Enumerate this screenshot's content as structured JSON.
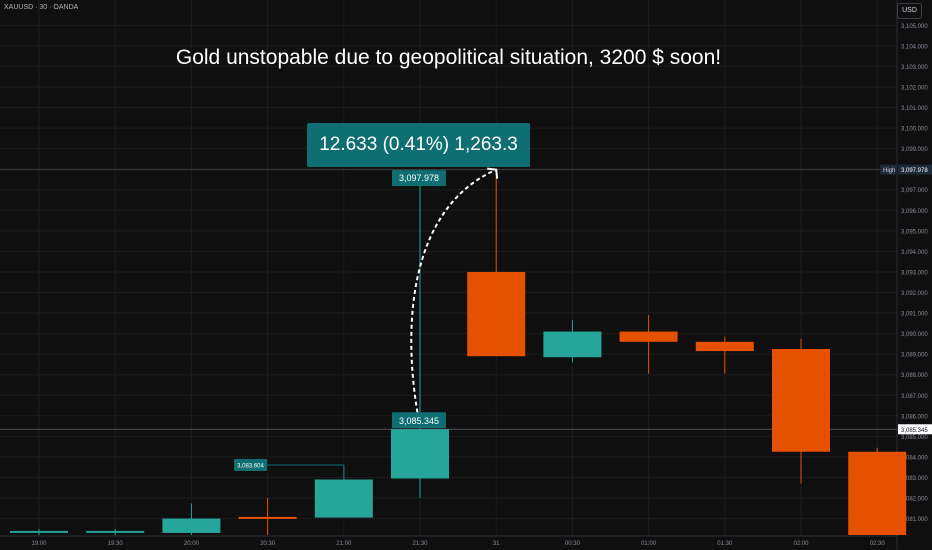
{
  "symbol_info": "XAUUSD · 30 · OANDA",
  "currency_label": "USD",
  "headline": "Gold unstopable due to geopolitical situation, 3200 $ soon!",
  "measure_label": "12.633 (0.41%) 1,263.3",
  "colors": {
    "background": "#0f0f0f",
    "up": "#26a69a",
    "down": "#e65100",
    "label_bg": "#0e6e72",
    "axis_text": "#8a8e99",
    "grid": "#1c1c1c"
  },
  "chart_data": {
    "type": "candlestick",
    "x_ticks": [
      "19:00",
      "19:30",
      "20:00",
      "20:30",
      "21:00",
      "21:30",
      "31",
      "00:30",
      "01:00",
      "01:30",
      "02:00",
      "02:30"
    ],
    "ylim": [
      3080.2,
      3105.6
    ],
    "y_ticks": [
      3081,
      3082,
      3083,
      3084,
      3085,
      3086,
      3087,
      3088,
      3089,
      3090,
      3091,
      3092,
      3093,
      3094,
      3095,
      3096,
      3097,
      3098,
      3099,
      3100,
      3101,
      3102,
      3103,
      3104,
      3105
    ],
    "y_tick_labels": [
      "3,081.000",
      "3,082.000",
      "3,083.000",
      "3,084.000",
      "3,085.000",
      "3,086.000",
      "3,087.000",
      "3,088.000",
      "3,089.000",
      "3,090.000",
      "3,091.000",
      "3,092.000",
      "3,093.000",
      "3,094.000",
      "3,095.000",
      "3,096.000",
      "3,097.000",
      "3,098.000",
      "3,099.000",
      "3,100.000",
      "3,101.000",
      "3,102.000",
      "3,103.000",
      "3,104.000",
      "3,105.000"
    ],
    "candles": [
      {
        "time": "19:00",
        "open": 3080.35,
        "high": 3080.5,
        "low": 3080.2,
        "close": 3080.4
      },
      {
        "time": "19:30",
        "open": 3080.35,
        "high": 3080.5,
        "low": 3080.2,
        "close": 3080.4
      },
      {
        "time": "20:00",
        "open": 3080.3,
        "high": 3081.73,
        "low": 3080.2,
        "close": 3081.0
      },
      {
        "time": "20:30",
        "open": 3081.08,
        "high": 3082.0,
        "low": 3080.2,
        "close": 3081.0
      },
      {
        "time": "21:00",
        "open": 3081.05,
        "high": 3083.6,
        "low": 3081.05,
        "close": 3082.9
      },
      {
        "time": "21:30",
        "open": 3082.95,
        "high": 3097.978,
        "low": 3082.0,
        "close": 3085.345
      },
      {
        "time": "31",
        "open": 3093.0,
        "high": 3097.978,
        "low": 3088.9,
        "close": 3088.9
      },
      {
        "time": "00:30",
        "open": 3088.85,
        "high": 3090.65,
        "low": 3088.6,
        "close": 3090.1
      },
      {
        "time": "01:00",
        "open": 3090.1,
        "high": 3090.9,
        "low": 3088.05,
        "close": 3089.6
      },
      {
        "time": "01:30",
        "open": 3089.6,
        "high": 3089.85,
        "low": 3088.05,
        "close": 3089.15
      },
      {
        "time": "02:00",
        "open": 3089.25,
        "high": 3089.75,
        "low": 3082.7,
        "close": 3084.25
      },
      {
        "time": "02:30",
        "open": 3084.25,
        "high": 3084.45,
        "low": 3080.2,
        "close": 3080.2
      }
    ],
    "price_lines": [
      {
        "label": "High",
        "value": 3097.978,
        "value_label": "3,097.978"
      },
      {
        "label": "",
        "value": 3085.345,
        "value_label": "3,085.345"
      }
    ],
    "annotations": [
      {
        "value": 3097.978,
        "text": "3,097.978"
      },
      {
        "value": 3085.345,
        "text": "3,085.345"
      },
      {
        "value": 3083.604,
        "text": "3,083.604"
      }
    ]
  }
}
